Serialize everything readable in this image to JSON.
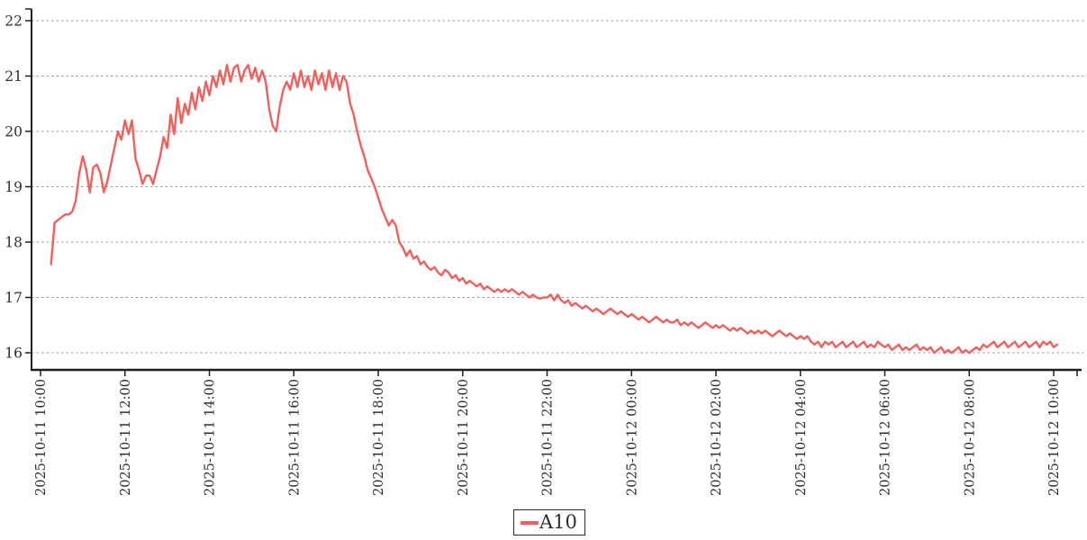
{
  "chart_data": {
    "type": "line",
    "title": "",
    "xlabel": "",
    "ylabel": "",
    "grid": "horizontal-dashed",
    "legend_position": "bottom-center",
    "ylim": [
      15.7,
      22.2
    ],
    "y_ticks": [
      16,
      17,
      18,
      19,
      20,
      21,
      22
    ],
    "x_tick_interval_minutes": 120,
    "x_ticks": [
      "2025-10-11 10:00",
      "2025-10-11 12:00",
      "2025-10-11 14:00",
      "2025-10-11 16:00",
      "2025-10-11 18:00",
      "2025-10-11 20:00",
      "2025-10-11 22:00",
      "2025-10-12 00:00",
      "2025-10-12 02:00",
      "2025-10-12 04:00",
      "2025-10-12 06:00",
      "2025-10-12 08:00",
      "2025-10-12 10:00"
    ],
    "series": [
      {
        "name": "A10",
        "color": "#f0605c",
        "start_time": "2025-10-11 10:15",
        "interval_minutes": 5,
        "values": [
          17.6,
          18.35,
          18.4,
          18.45,
          18.5,
          18.5,
          18.55,
          18.75,
          19.25,
          19.55,
          19.3,
          18.9,
          19.35,
          19.4,
          19.25,
          18.9,
          19.1,
          19.4,
          19.7,
          20.0,
          19.85,
          20.2,
          19.95,
          20.2,
          19.5,
          19.3,
          19.05,
          19.2,
          19.2,
          19.05,
          19.3,
          19.55,
          19.9,
          19.7,
          20.3,
          19.95,
          20.6,
          20.15,
          20.5,
          20.3,
          20.7,
          20.4,
          20.8,
          20.55,
          20.9,
          20.65,
          21.0,
          20.8,
          21.1,
          20.85,
          21.2,
          20.9,
          21.15,
          21.2,
          20.9,
          21.1,
          21.2,
          20.95,
          21.15,
          20.9,
          21.1,
          20.9,
          20.4,
          20.1,
          20.0,
          20.45,
          20.75,
          20.9,
          20.75,
          21.05,
          20.8,
          21.1,
          20.8,
          21.0,
          20.75,
          21.1,
          20.85,
          21.05,
          20.75,
          21.1,
          20.8,
          21.05,
          20.75,
          21.0,
          20.9,
          20.5,
          20.3,
          20.0,
          19.75,
          19.55,
          19.3,
          19.15,
          19.0,
          18.8,
          18.6,
          18.45,
          18.3,
          18.4,
          18.3,
          18.0,
          17.9,
          17.75,
          17.85,
          17.7,
          17.75,
          17.6,
          17.65,
          17.55,
          17.5,
          17.55,
          17.45,
          17.4,
          17.5,
          17.45,
          17.35,
          17.4,
          17.3,
          17.35,
          17.25,
          17.3,
          17.25,
          17.2,
          17.25,
          17.15,
          17.2,
          17.15,
          17.1,
          17.15,
          17.1,
          17.15,
          17.1,
          17.15,
          17.1,
          17.05,
          17.1,
          17.05,
          17.0,
          17.05,
          17.0,
          16.98,
          17.0,
          17.0,
          17.05,
          16.95,
          17.05,
          16.95,
          16.9,
          16.95,
          16.85,
          16.9,
          16.85,
          16.8,
          16.85,
          16.8,
          16.75,
          16.8,
          16.75,
          16.7,
          16.75,
          16.8,
          16.75,
          16.7,
          16.75,
          16.7,
          16.65,
          16.7,
          16.65,
          16.6,
          16.65,
          16.6,
          16.55,
          16.6,
          16.65,
          16.6,
          16.55,
          16.6,
          16.55,
          16.55,
          16.6,
          16.5,
          16.55,
          16.5,
          16.55,
          16.5,
          16.45,
          16.5,
          16.55,
          16.5,
          16.45,
          16.5,
          16.45,
          16.5,
          16.45,
          16.4,
          16.45,
          16.4,
          16.45,
          16.4,
          16.35,
          16.4,
          16.35,
          16.4,
          16.35,
          16.4,
          16.35,
          16.3,
          16.35,
          16.4,
          16.35,
          16.3,
          16.35,
          16.3,
          16.25,
          16.3,
          16.25,
          16.3,
          16.2,
          16.15,
          16.2,
          16.1,
          16.2,
          16.15,
          16.2,
          16.1,
          16.15,
          16.2,
          16.1,
          16.15,
          16.2,
          16.1,
          16.15,
          16.2,
          16.1,
          16.15,
          16.1,
          16.2,
          16.15,
          16.1,
          16.15,
          16.05,
          16.1,
          16.15,
          16.05,
          16.1,
          16.05,
          16.1,
          16.15,
          16.05,
          16.1,
          16.05,
          16.1,
          16.0,
          16.05,
          16.1,
          16.0,
          16.05,
          16.0,
          16.05,
          16.1,
          16.0,
          16.05,
          16.0,
          16.05,
          16.1,
          16.05,
          16.15,
          16.1,
          16.15,
          16.2,
          16.1,
          16.15,
          16.2,
          16.1,
          16.15,
          16.2,
          16.1,
          16.15,
          16.2,
          16.1,
          16.15,
          16.2,
          16.1,
          16.2,
          16.15,
          16.2,
          16.1,
          16.15
        ]
      }
    ]
  },
  "legend": {
    "label": "A10"
  },
  "colors": {
    "series": "#f0605c",
    "grid": "#999999",
    "axis": "#1f1f1f",
    "text": "#2e2e2e",
    "background": "#ffffff"
  }
}
